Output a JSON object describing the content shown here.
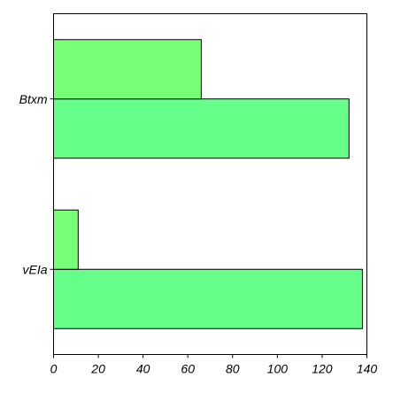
{
  "chart_data": {
    "type": "bar",
    "orientation": "horizontal",
    "categories": [
      "vEIa",
      "Btxm"
    ],
    "series": [
      {
        "values": [
          138,
          132
        ]
      },
      {
        "values": [
          11,
          66
        ]
      }
    ],
    "xlim": [
      0,
      140
    ],
    "xticks": [
      0,
      20,
      40,
      60,
      80,
      100,
      120,
      140
    ],
    "grid": false,
    "colors": {
      "series_0": "#66ff8a",
      "series_1": "#77ff77",
      "stroke": "#000000"
    },
    "title": "",
    "xlabel": "",
    "ylabel": ""
  }
}
